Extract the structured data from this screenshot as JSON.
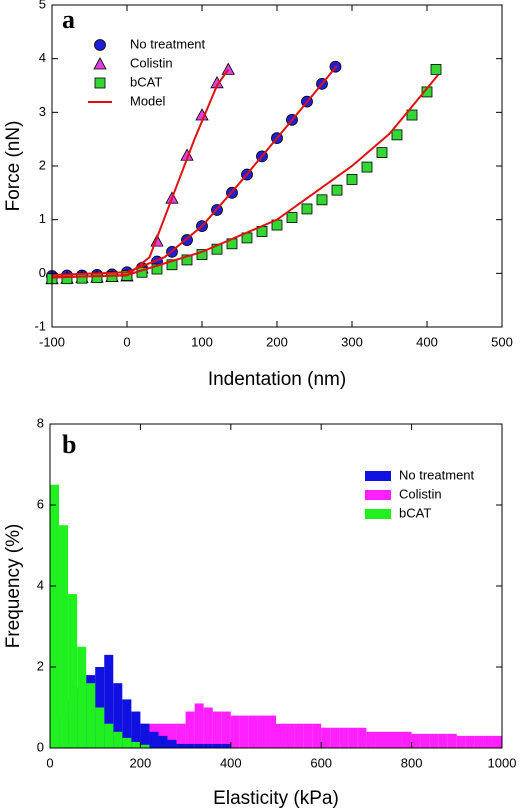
{
  "chart_data": [
    {
      "type": "scatter",
      "annotation": "a",
      "xlabel": "Indentation (nm)",
      "ylabel": "Force (nN)",
      "xlim": [
        -100,
        500
      ],
      "xticks": [
        -100,
        0,
        100,
        200,
        300,
        400,
        500
      ],
      "ylim": [
        -1,
        5
      ],
      "yticks": [
        -1,
        0,
        1,
        2,
        3,
        4,
        5
      ],
      "legend": "upper left",
      "series": [
        {
          "name": "No treatment",
          "color": "#1f1fd6",
          "marker": "circle",
          "x": [
            -100,
            -80,
            -60,
            -40,
            -20,
            0,
            20,
            40,
            60,
            80,
            100,
            120,
            140,
            160,
            180,
            200,
            220,
            240,
            260,
            278
          ],
          "values": [
            -0.05,
            -0.04,
            -0.04,
            -0.03,
            -0.02,
            0.02,
            0.1,
            0.22,
            0.4,
            0.62,
            0.88,
            1.18,
            1.5,
            1.84,
            2.18,
            2.52,
            2.86,
            3.2,
            3.53,
            3.85
          ]
        },
        {
          "name": "Colistin",
          "color": "#e040e0",
          "marker": "triangle",
          "x": [
            -100,
            -80,
            -60,
            -40,
            -20,
            0,
            20,
            40,
            60,
            80,
            100,
            120,
            135
          ],
          "values": [
            -0.1,
            -0.09,
            -0.08,
            -0.07,
            -0.06,
            -0.05,
            0.1,
            0.6,
            1.4,
            2.2,
            2.95,
            3.55,
            3.8
          ]
        },
        {
          "name": "bCAT",
          "color": "#33d633",
          "marker": "square",
          "x": [
            -100,
            -80,
            -60,
            -40,
            -20,
            0,
            20,
            40,
            60,
            80,
            100,
            120,
            140,
            160,
            180,
            200,
            220,
            240,
            260,
            280,
            300,
            320,
            340,
            360,
            380,
            400,
            412
          ],
          "values": [
            -0.1,
            -0.1,
            -0.09,
            -0.08,
            -0.06,
            -0.04,
            0.02,
            0.08,
            0.16,
            0.25,
            0.35,
            0.45,
            0.55,
            0.66,
            0.78,
            0.9,
            1.04,
            1.2,
            1.37,
            1.55,
            1.75,
            1.98,
            2.25,
            2.58,
            2.95,
            3.38,
            3.8
          ]
        },
        {
          "name": "Model",
          "color": "#e01010",
          "marker": "line",
          "x": [
            -100,
            0,
            50,
            100,
            150,
            200,
            250,
            280,
            null,
            -100,
            0,
            30,
            60,
            90,
            120,
            135,
            null,
            -100,
            0,
            100,
            200,
            300,
            350,
            415
          ],
          "values": [
            -0.03,
            0.02,
            0.3,
            0.88,
            1.68,
            2.52,
            3.36,
            3.87,
            null,
            -0.07,
            -0.04,
            0.3,
            1.4,
            2.5,
            3.5,
            3.8,
            null,
            -0.08,
            -0.03,
            0.4,
            1.0,
            2.0,
            2.6,
            3.7
          ]
        }
      ]
    },
    {
      "type": "histogram",
      "annotation": "b",
      "xlabel": "Elasticity (kPa)",
      "ylabel": "Frequency (%)",
      "xlim": [
        0,
        1000
      ],
      "xticks": [
        0,
        200,
        400,
        600,
        800,
        1000
      ],
      "ylim": [
        0,
        8
      ],
      "yticks": [
        0,
        2,
        4,
        6,
        8
      ],
      "legend": "upper right",
      "bins": [
        0,
        20,
        40,
        60,
        80,
        100,
        120,
        140,
        160,
        180,
        200,
        220,
        240,
        260,
        280,
        300,
        320,
        340,
        360,
        380,
        400,
        420,
        440,
        460,
        480,
        500,
        520,
        540,
        560,
        580,
        600,
        620,
        640,
        660,
        680,
        700,
        720,
        740,
        760,
        780,
        800,
        820,
        840,
        860,
        880,
        900,
        920,
        940,
        960,
        980,
        1000
      ],
      "series": [
        {
          "name": "No treatment",
          "color": "#1010e0",
          "values": [
            0.3,
            0.8,
            1.2,
            1.5,
            1.8,
            2.0,
            2.3,
            1.6,
            1.2,
            0.9,
            0.6,
            0.4,
            0.3,
            0.2,
            0.1,
            0.1,
            0.1,
            0.1,
            0.1,
            0.1,
            0,
            0,
            0,
            0,
            0,
            0,
            0,
            0,
            0,
            0,
            0,
            0,
            0,
            0,
            0,
            0,
            0,
            0,
            0,
            0,
            0,
            0,
            0,
            0,
            0,
            0,
            0,
            0,
            0,
            0
          ]
        },
        {
          "name": "Colistin",
          "color": "#ff20ff",
          "values": [
            0,
            0,
            0,
            0,
            0,
            0.3,
            0.3,
            0.3,
            0.3,
            0.3,
            0.6,
            0.6,
            0.6,
            0.6,
            0.6,
            0.9,
            1.1,
            1.0,
            0.9,
            0.9,
            0.8,
            0.8,
            0.8,
            0.8,
            0.8,
            0.6,
            0.6,
            0.6,
            0.6,
            0.6,
            0.5,
            0.5,
            0.5,
            0.5,
            0.5,
            0.4,
            0.4,
            0.4,
            0.4,
            0.4,
            0.35,
            0.35,
            0.35,
            0.35,
            0.35,
            0.3,
            0.3,
            0.3,
            0.3,
            0.3
          ]
        },
        {
          "name": "bCAT",
          "color": "#20f020",
          "values": [
            6.5,
            5.5,
            3.8,
            2.5,
            1.6,
            1.0,
            0.6,
            0.4,
            0.25,
            0.15,
            0.08,
            0,
            0,
            0,
            0,
            0,
            0,
            0,
            0,
            0,
            0,
            0,
            0,
            0,
            0,
            0,
            0,
            0,
            0,
            0,
            0,
            0,
            0,
            0,
            0,
            0,
            0,
            0,
            0,
            0,
            0,
            0,
            0,
            0,
            0,
            0,
            0,
            0,
            0,
            0
          ]
        }
      ]
    }
  ]
}
